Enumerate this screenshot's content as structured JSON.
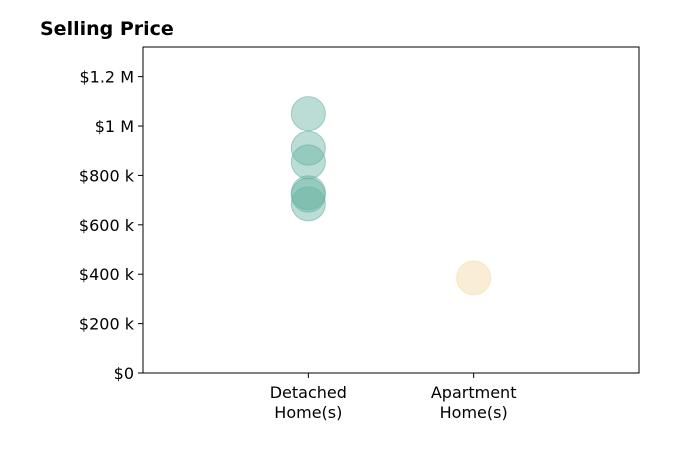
{
  "chart_data": {
    "type": "scatter",
    "title": "Selling Price",
    "xlabel": "",
    "ylabel": "",
    "categories": [
      "Detached\nHome(s)",
      "Apartment\nHome(s)"
    ],
    "xlim": [
      0,
      3
    ],
    "ylim": [
      0,
      1320000
    ],
    "y_ticks": [
      0,
      200000,
      400000,
      600000,
      800000,
      1000000,
      1200000
    ],
    "y_tick_labels": [
      "$0",
      "$200 k",
      "$400 k",
      "$600 k",
      "$800 k",
      "$1 M",
      "$1.2 M"
    ],
    "grid": false,
    "series": [
      {
        "category_index": 0,
        "color": "#69b3a2",
        "opacity": 0.45,
        "values": [
          1050000,
          910000,
          855000,
          730000,
          720000,
          685000
        ]
      },
      {
        "category_index": 1,
        "color": "#f3dcac",
        "opacity": 0.5,
        "values": [
          385000
        ]
      }
    ]
  }
}
